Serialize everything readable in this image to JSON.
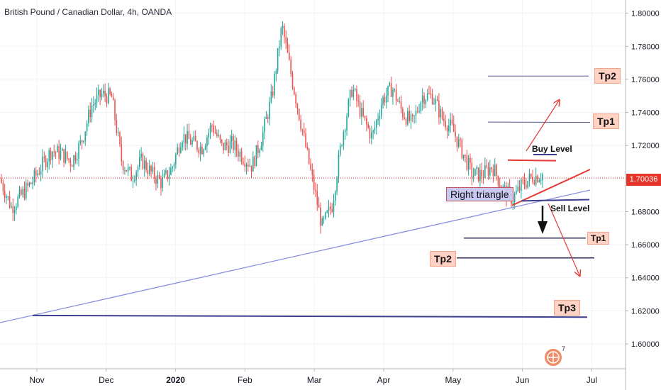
{
  "chart_data": {
    "type": "candlestick",
    "title": "British Pound / Canadian Dollar, 4h, OANDA",
    "ylim": [
      1.585,
      1.808
    ],
    "y_ticks": [
      "1.80000",
      "1.78000",
      "1.76000",
      "1.74000",
      "1.72000",
      "1.70000",
      "1.68000",
      "1.66000",
      "1.64000",
      "1.62000",
      "1.60000"
    ],
    "y_tick_values": [
      1.8,
      1.78,
      1.76,
      1.74,
      1.72,
      1.7,
      1.68,
      1.66,
      1.64,
      1.62,
      1.6
    ],
    "x_ticks": [
      "Nov",
      "Dec",
      "2020",
      "Feb",
      "Mar",
      "Apr",
      "May",
      "Jun",
      "Jul"
    ],
    "current_price": "1.70036",
    "current_price_value": 1.70036,
    "up_color": "#26a69a",
    "down_color": "#ef5350",
    "price_path": [
      [
        1.7,
        1.695
      ],
      [
        1.69,
        1.675
      ],
      [
        1.682,
        1.698
      ],
      [
        1.705,
        1.69
      ],
      [
        1.7,
        1.715
      ],
      [
        1.722,
        1.712
      ],
      [
        1.71,
        1.72
      ],
      [
        1.715,
        1.705
      ],
      [
        1.715,
        1.73
      ],
      [
        1.74,
        1.748
      ],
      [
        1.742,
        1.76
      ],
      [
        1.778,
        1.72
      ],
      [
        1.716,
        1.705
      ],
      [
        1.702,
        1.7
      ],
      [
        1.71,
        1.712
      ],
      [
        1.706,
        1.7
      ],
      [
        1.7,
        1.695
      ],
      [
        1.7,
        1.712
      ],
      [
        1.722,
        1.73
      ],
      [
        1.728,
        1.716
      ],
      [
        1.712,
        1.725
      ],
      [
        1.74,
        1.725
      ],
      [
        1.72,
        1.718
      ],
      [
        1.722,
        1.72
      ],
      [
        1.718,
        1.71
      ],
      [
        1.705,
        1.71
      ],
      [
        1.72,
        1.73
      ],
      [
        1.74,
        1.76
      ],
      [
        1.8,
        1.785
      ],
      [
        1.77,
        1.75
      ],
      [
        1.74,
        1.72
      ],
      [
        1.71,
        1.69
      ],
      [
        1.68,
        1.662
      ],
      [
        1.668,
        1.7
      ],
      [
        1.71,
        1.74
      ],
      [
        1.76,
        1.75
      ],
      [
        1.745,
        1.73
      ],
      [
        1.72,
        1.73
      ],
      [
        1.74,
        1.755
      ],
      [
        1.762,
        1.748
      ],
      [
        1.745,
        1.735
      ],
      [
        1.738,
        1.728
      ],
      [
        1.74,
        1.76
      ],
      [
        1.758,
        1.742
      ],
      [
        1.735,
        1.738
      ],
      [
        1.732,
        1.728
      ],
      [
        1.722,
        1.71
      ],
      [
        1.705,
        1.7
      ],
      [
        1.705,
        1.7
      ],
      [
        1.71,
        1.705
      ],
      [
        1.7,
        1.688
      ],
      [
        1.685,
        1.69
      ],
      [
        1.695,
        1.698
      ],
      [
        1.7,
        1.702
      ],
      [
        1.705,
        1.7
      ]
    ],
    "trendlines": {
      "long_support": {
        "from": [
          "start",
          1.614
        ],
        "to": [
          "late Jun",
          1.694
        ],
        "color": "#8a8fe0"
      },
      "triangle_top": {
        "level": 1.711,
        "color": "#e53935"
      },
      "triangle_bottom_diagonal": {
        "from": [
          "late May",
          1.684
        ],
        "to": [
          "Jun",
          1.705
        ],
        "color": "#e53935"
      },
      "base_line": {
        "level": 1.687,
        "color": "#3f3f8f"
      },
      "long_horizontal": {
        "level": 1.617,
        "color": "#3f3f8f"
      }
    },
    "targets": [
      {
        "label": "Tp2",
        "level": 1.762,
        "side": "buy"
      },
      {
        "label": "Tp1",
        "level": 1.734,
        "side": "buy"
      },
      {
        "label": "Tp1",
        "level": 1.664,
        "side": "sell"
      },
      {
        "label": "Tp2",
        "level": 1.652,
        "side": "sell"
      },
      {
        "label": "Tp3",
        "level": 1.617,
        "side": "sell"
      }
    ],
    "annotations": {
      "pattern_label": "Right triangle",
      "buy_label": "Buy Level",
      "sell_label": "Sell Level",
      "buy_level": 1.714,
      "sell_level": 1.687
    },
    "grid": true,
    "background": "#ffffff",
    "axis_color": "#b2b5be"
  },
  "logo": {
    "badge_number": "7"
  }
}
